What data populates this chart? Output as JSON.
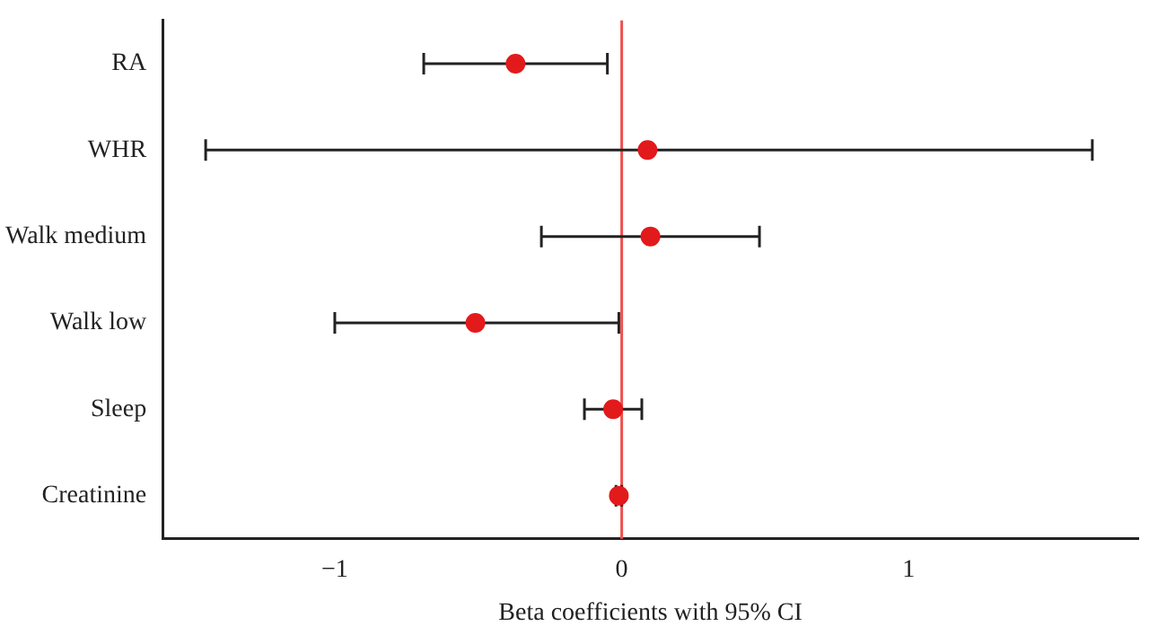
{
  "chart_data": {
    "type": "scatter",
    "orientation": "horizontal",
    "xlabel": "Beta coefficients with 95% CI",
    "categories": [
      "RA",
      "WHR",
      "Walk medium",
      "Walk low",
      "Sleep",
      "Creatinine"
    ],
    "values": [
      -0.37,
      0.09,
      0.1,
      -0.51,
      -0.03,
      -0.01
    ],
    "errors": [
      [
        -0.69,
        -0.05
      ],
      [
        -1.45,
        1.64
      ],
      [
        -0.28,
        0.48
      ],
      [
        -1.0,
        -0.01
      ],
      [
        -0.13,
        0.07
      ],
      [
        -0.02,
        0.0
      ]
    ],
    "color": "#e31a1c",
    "marker": "circle",
    "xlim": [
      -1.6,
      1.8
    ],
    "xticks": [
      {
        "value": -1,
        "label": "−1"
      },
      0,
      1
    ],
    "ref_lines": [
      {
        "axis": "x",
        "value": 0,
        "color": "#f05050"
      }
    ],
    "grid": false,
    "legend": false
  }
}
